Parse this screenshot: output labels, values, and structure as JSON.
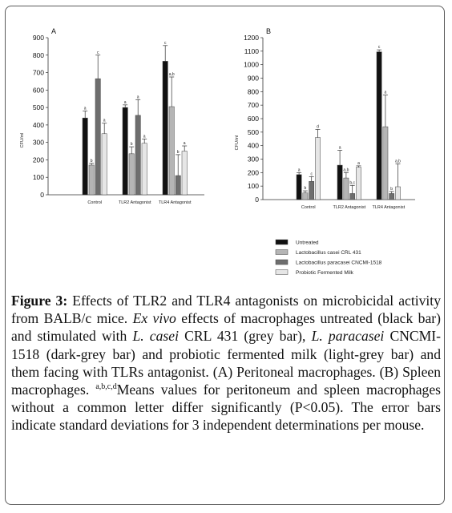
{
  "figure": {
    "caption": {
      "label": "Figure 3:",
      "part1": " Effects of TLR2 and TLR4 antagonists on microbicidal activity from BALB/c mice. ",
      "ex_vivo": "Ex vivo",
      "part2": " effects of macrophages untreated (black bar) and stimulated with ",
      "l_casei": "L. casei",
      "part3": " CRL 431 (grey bar), ",
      "l_paracasei": "L. paracasei",
      "part4": " CNCMI-1518 (dark-grey bar) and probiotic fermented milk (light-grey bar) and them facing with TLRs antagonist. (A) Peritoneal macrophages. (B) Spleen macrophages. ",
      "sup": "a,b,c,d",
      "part5": "Means values for peritoneum and spleen macrophages without a common letter differ significantly (P<0.05). The error bars indicate standard deviations for 3 independent determinations per mouse."
    }
  },
  "colors": {
    "untreated": "#111111",
    "l_casei": "#b5b5b5",
    "l_paracasei": "#6e6e6e",
    "fermented_milk": "#e6e6e6"
  },
  "legend": [
    {
      "label": "Untreated",
      "color": "#111111"
    },
    {
      "label": "Lactobacillus casei CRL 431",
      "color": "#b5b5b5"
    },
    {
      "label": "Lactobacillus paracasei CNCMI-1518",
      "color": "#6e6e6e"
    },
    {
      "label": "Probiotic Fermented Milk",
      "color": "#e6e6e6"
    }
  ],
  "chart_data": [
    {
      "type": "bar",
      "panel": "A",
      "ylabel": "CFU/ml",
      "ylim": [
        0,
        900
      ],
      "yticks": [
        0,
        100,
        200,
        300,
        400,
        500,
        600,
        700,
        800,
        900
      ],
      "categories": [
        "Control",
        "TLR2 Antagonist",
        "TLR4 Antagonist"
      ],
      "series": [
        {
          "name": "Untreated",
          "values": [
            440,
            500,
            765
          ],
          "errors": [
            40,
            15,
            90
          ],
          "letters": [
            "a",
            "a",
            "c"
          ]
        },
        {
          "name": "Lactobacillus casei CRL 431",
          "values": [
            170,
            235,
            505
          ],
          "errors": [
            10,
            40,
            170
          ],
          "letters": [
            "b",
            "b",
            "a,b"
          ]
        },
        {
          "name": "Lactobacillus paracasei CNCMI-1518",
          "values": [
            665,
            455,
            110
          ],
          "errors": [
            135,
            90,
            120
          ],
          "letters": [
            "c",
            "a",
            "b"
          ]
        },
        {
          "name": "Probiotic Fermented Milk",
          "values": [
            350,
            295,
            250
          ],
          "errors": [
            60,
            25,
            30
          ],
          "letters": [
            "a",
            "a",
            "a"
          ]
        }
      ]
    },
    {
      "type": "bar",
      "panel": "B",
      "ylabel": "CFU/ml",
      "ylim": [
        0,
        1200
      ],
      "yticks": [
        0,
        100,
        200,
        300,
        400,
        500,
        600,
        700,
        800,
        900,
        1000,
        1100,
        1200
      ],
      "categories": [
        "Control",
        "TLR2 Antagonist",
        "TLR4 Antagonist"
      ],
      "series": [
        {
          "name": "Untreated",
          "values": [
            185,
            255,
            1095
          ],
          "errors": [
            15,
            110,
            15
          ],
          "letters": [
            "a",
            "a",
            "c"
          ]
        },
        {
          "name": "Lactobacillus casei CRL 431",
          "values": [
            50,
            160,
            540
          ],
          "errors": [
            15,
            40,
            235
          ],
          "letters": [
            "b",
            "a,b",
            "a"
          ]
        },
        {
          "name": "Lactobacillus paracasei CNCMI-1518",
          "values": [
            135,
            45,
            45
          ],
          "errors": [
            35,
            60,
            15
          ],
          "letters": [
            "c",
            "b,c",
            "b"
          ]
        },
        {
          "name": "Probiotic Fermented Milk",
          "values": [
            460,
            240,
            95
          ],
          "errors": [
            60,
            10,
            170
          ],
          "letters": [
            "d",
            "a",
            "a,b"
          ]
        }
      ]
    }
  ]
}
